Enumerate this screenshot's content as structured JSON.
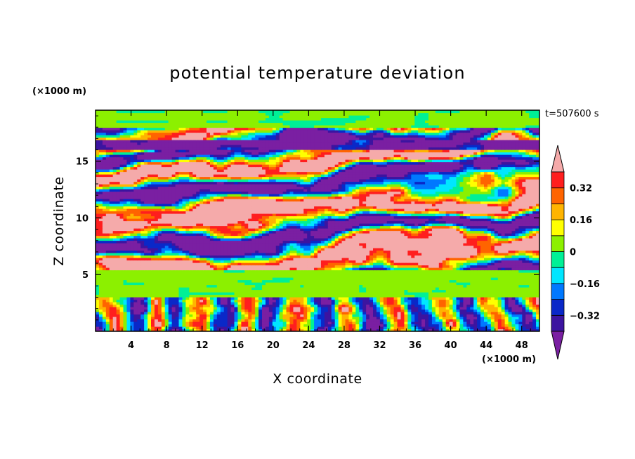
{
  "chart_data": {
    "type": "heatmap",
    "title": "potential temperature deviation",
    "xlabel": "X coordinate",
    "ylabel": "Z coordinate",
    "x_unit": "(×1000 m)",
    "y_unit": "(×1000 m)",
    "time_label": "t=507600 s",
    "xlim": [
      0,
      50
    ],
    "ylim": [
      0,
      19.5
    ],
    "x_ticks": [
      4,
      8,
      12,
      16,
      20,
      24,
      28,
      32,
      36,
      40,
      44,
      48
    ],
    "y_ticks": [
      5,
      10,
      15
    ],
    "colorbar": {
      "levels": [
        -0.4,
        -0.32,
        -0.24,
        -0.16,
        -0.08,
        0,
        0.08,
        0.16,
        0.24,
        0.32,
        0.4
      ],
      "labels": [
        "0.32",
        "0.16",
        "0",
        "−0.16",
        "−0.32"
      ],
      "label_values": [
        0.32,
        0.16,
        0,
        -0.16,
        -0.32
      ],
      "colors": [
        "#7a1fa2",
        "#3c14a0",
        "#0a28c8",
        "#0078ff",
        "#00e6ff",
        "#00f096",
        "#8cf000",
        "#ffff00",
        "#ffb400",
        "#ff6400",
        "#ff1e1e",
        "#f5aaaa"
      ],
      "extend": "both"
    }
  }
}
